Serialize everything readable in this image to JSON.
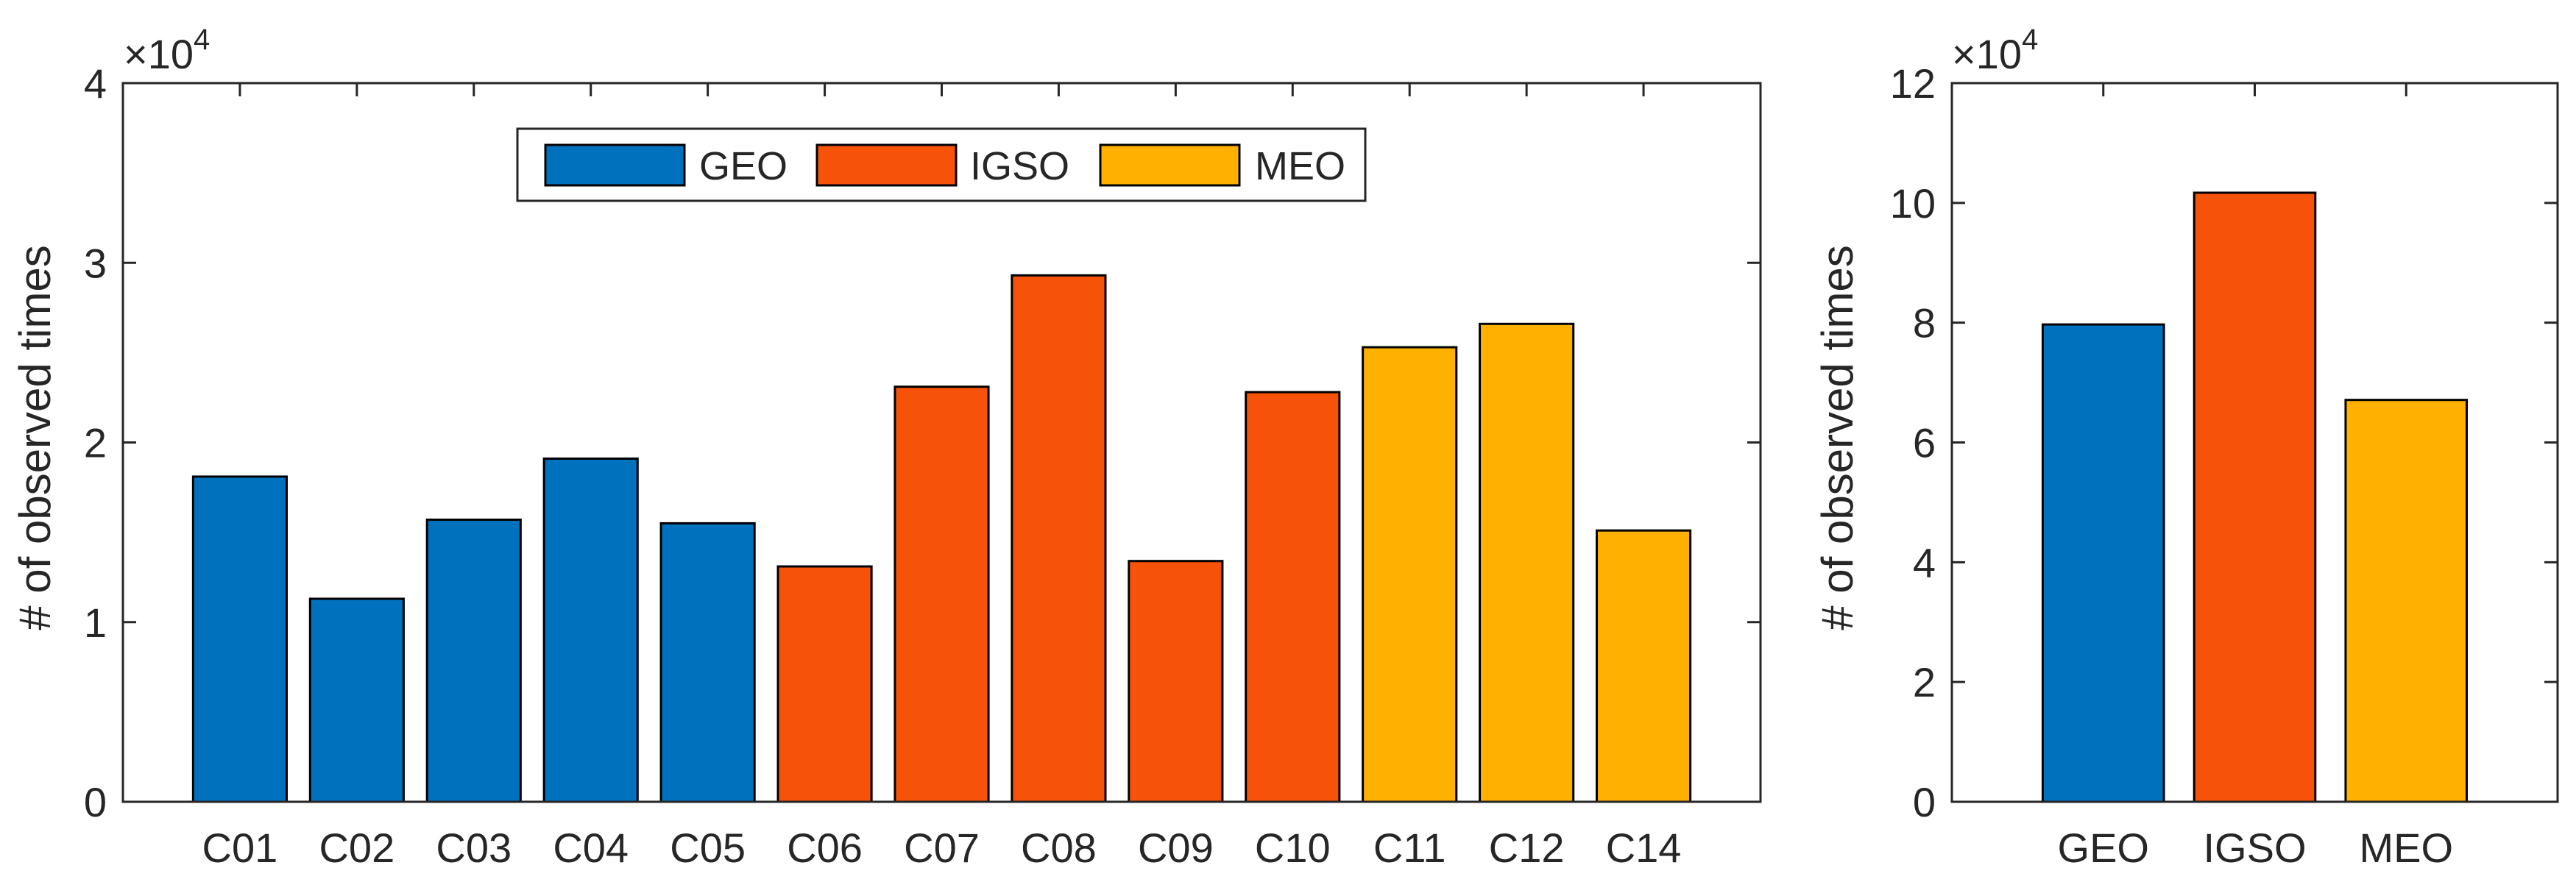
{
  "chart_data": [
    {
      "type": "bar",
      "title": "",
      "ylabel": "# of observed times",
      "xlabel": "",
      "exponent_label": "×10",
      "exponent_power": "4",
      "ylim": [
        0,
        4
      ],
      "yticks": [
        0,
        1,
        2,
        3,
        4
      ],
      "ytick_labels": [
        "0",
        "1",
        "2",
        "3",
        "4"
      ],
      "categories": [
        "C01",
        "C02",
        "C03",
        "C04",
        "C05",
        "C06",
        "C07",
        "C08",
        "C09",
        "C10",
        "C11",
        "C12",
        "C14"
      ],
      "values": [
        1.81,
        1.13,
        1.57,
        1.91,
        1.55,
        1.31,
        2.31,
        2.93,
        1.34,
        2.28,
        2.53,
        2.66,
        1.51
      ],
      "groups": [
        "GEO",
        "GEO",
        "GEO",
        "GEO",
        "GEO",
        "IGSO",
        "IGSO",
        "IGSO",
        "IGSO",
        "IGSO",
        "MEO",
        "MEO",
        "MEO"
      ],
      "legend": [
        {
          "label": "GEO",
          "color": "#0072BD"
        },
        {
          "label": "IGSO",
          "color": "#F7520A"
        },
        {
          "label": "MEO",
          "color": "#FFB000"
        }
      ],
      "legend_position": "top-center",
      "grid": false
    },
    {
      "type": "bar",
      "title": "",
      "ylabel": "# of observed times",
      "xlabel": "",
      "exponent_label": "×10",
      "exponent_power": "4",
      "ylim": [
        0,
        12
      ],
      "yticks": [
        0,
        2,
        4,
        6,
        8,
        10,
        12
      ],
      "ytick_labels": [
        "0",
        "2",
        "4",
        "6",
        "8",
        "10",
        "12"
      ],
      "categories": [
        "GEO",
        "IGSO",
        "MEO"
      ],
      "values": [
        7.97,
        10.17,
        6.71
      ],
      "colors": [
        "#0072BD",
        "#F7520A",
        "#FFB000"
      ],
      "grid": false
    }
  ]
}
